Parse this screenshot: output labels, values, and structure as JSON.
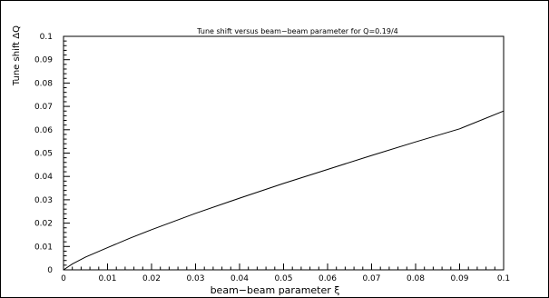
{
  "chart_data": {
    "type": "line",
    "title": "Tune shift versus beam−beam parameter for Q=0.19/4",
    "xlabel": "beam−beam parameter ξ",
    "ylabel": "Tune shift ΔQ",
    "xlim": [
      0,
      0.1
    ],
    "ylim": [
      0,
      0.1
    ],
    "x_ticks": [
      "0",
      "0.01",
      "0.02",
      "0.03",
      "0.04",
      "0.05",
      "0.06",
      "0.07",
      "0.08",
      "0.09",
      "0.1"
    ],
    "y_ticks": [
      "0",
      "0.01",
      "0.02",
      "0.03",
      "0.04",
      "0.05",
      "0.06",
      "0.07",
      "0.08",
      "0.09",
      "0.1"
    ],
    "grid": false,
    "series": [
      {
        "x": [
          0,
          0.002,
          0.005,
          0.01,
          0.015,
          0.02,
          0.03,
          0.04,
          0.05,
          0.06,
          0.07,
          0.08,
          0.09,
          0.1
        ],
        "y": [
          0,
          0.0025,
          0.0055,
          0.0095,
          0.0135,
          0.0172,
          0.0242,
          0.0307,
          0.037,
          0.043,
          0.049,
          0.0548,
          0.0604,
          0.068
        ]
      }
    ]
  }
}
